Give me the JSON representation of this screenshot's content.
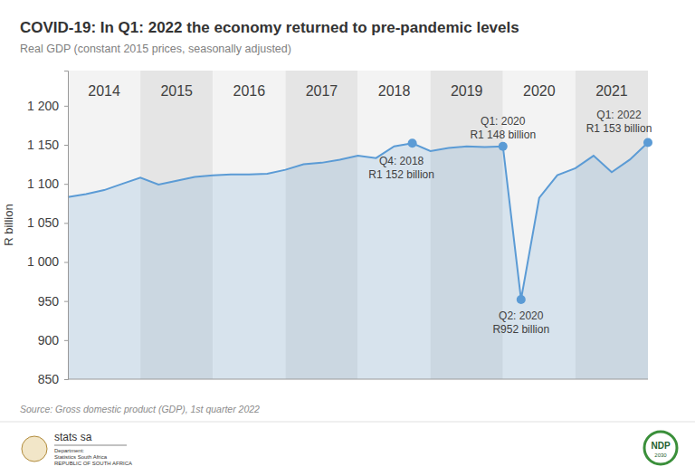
{
  "chart_data": {
    "type": "area",
    "title": "COVID-19: In Q1: 2022 the economy returned to pre-pandemic levels",
    "subtitle": "Real GDP (constant 2015 prices, seasonally adjusted)",
    "y_label": "R billion",
    "categories": [
      null,
      null,
      null,
      null,
      null,
      null,
      null,
      null,
      null,
      null,
      null,
      null,
      null,
      null,
      null,
      null,
      null,
      null,
      null,
      null,
      null,
      null,
      null,
      null,
      null,
      null,
      null,
      null,
      null,
      null,
      null,
      null,
      null
    ],
    "values": [
      1083,
      1087,
      1092,
      1100,
      1108,
      1099,
      1104,
      1109,
      1111,
      1112,
      1112,
      1113,
      1118,
      1125,
      1127,
      1131,
      1136,
      1133,
      1148,
      1152,
      1142,
      1146,
      1148,
      1147,
      1148,
      952,
      1082,
      1111,
      1120,
      1136,
      1115,
      1131,
      1153
    ],
    "color": "#5b9bd5",
    "year_bands": [
      "2014",
      "2015",
      "2016",
      "2017",
      "2018",
      "2019",
      "2020",
      "2021"
    ],
    "ylim": [
      850,
      1245
    ],
    "yticks": [
      850,
      900,
      950,
      {
        "value": 1000,
        "label": "1 000"
      },
      {
        "value": 1050,
        "label": "1 050"
      },
      {
        "value": 1100,
        "label": "1 100"
      },
      {
        "value": 1150,
        "label": "1 150"
      },
      {
        "value": 1200,
        "label": "1 200"
      }
    ],
    "grid": false,
    "tick_labels": "y",
    "annotations": [
      {
        "point": 19,
        "text": [
          "Q4: 2018",
          "R1 152 billion"
        ]
      },
      {
        "point": 24,
        "text": [
          "Q1: 2020",
          "R1 148 billion"
        ]
      },
      {
        "point": 25,
        "text": [
          "Q2: 2020",
          "R952 billion"
        ]
      },
      {
        "point": 32,
        "text": [
          "Q1: 2022",
          "R1 153 billion"
        ]
      }
    ],
    "source": "Source: Gross domestic product (GDP), 1st quarter 2022"
  },
  "footer": {
    "left_logo": [
      "stats sa",
      "Department:",
      "Statistics South Africa",
      "REPUBLIC OF SOUTH AFRICA"
    ],
    "right_logo": [
      "NDP",
      "2030"
    ]
  }
}
